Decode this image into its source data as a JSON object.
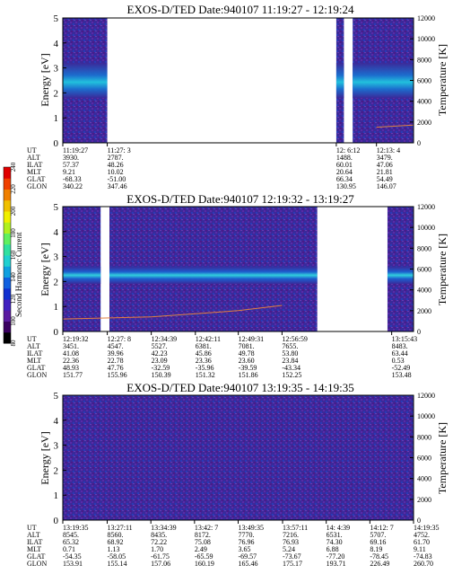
{
  "colorbar": {
    "title": "Second Harmonic Current",
    "ticks": [
      "80",
      "100",
      "120",
      "140",
      "160",
      "180",
      "200",
      "220",
      "240"
    ],
    "colors": [
      "#000000",
      "#3a0060",
      "#5a1aa0",
      "#4020c0",
      "#1030d0",
      "#1060e0",
      "#10a0e0",
      "#20d0d0",
      "#30e0a0",
      "#60f060",
      "#b0f020",
      "#f0f000",
      "#f0c000",
      "#f08000",
      "#f04000",
      "#e00000"
    ]
  },
  "panels": [
    {
      "title": "EXOS-D/TED   Date:940107   11:19:27 - 12:19:24",
      "ylabel_left": "Energy [eV]",
      "ylabel_right": "Temperature [K]",
      "ylim": [
        0,
        5
      ],
      "y2lim": [
        0,
        12000
      ],
      "yticks": [
        "0",
        "1",
        "2",
        "3",
        "4",
        "5"
      ],
      "y2ticks": [
        "0",
        "2000",
        "4000",
        "6000",
        "8000",
        "10000",
        "12000"
      ],
      "row_labels": [
        "UT",
        "ALT",
        "ILAT",
        "MLT",
        "GLAT",
        "GLON"
      ],
      "columns": [
        {
          "values": [
            "11:19:27",
            "3930.",
            "57.37",
            "9.21",
            "-68.33",
            "340.22"
          ]
        },
        {
          "values": [
            "11:27: 3",
            "2787.",
            "48.26",
            "10.02",
            "-51.00",
            "347.46"
          ]
        },
        {
          "values": [
            "12: 6:12",
            "1488.",
            "60.01",
            "20.64",
            "66.34",
            "130.95"
          ]
        },
        {
          "values": [
            "12:13: 4",
            "3479.",
            "47.06",
            "21.81",
            "54.49",
            "146.07"
          ]
        }
      ]
    },
    {
      "title": "EXOS-D/TED   Date:940107   12:19:32 - 13:19:27",
      "ylabel_left": "Energy [eV]",
      "ylabel_right": "Temperature [K]",
      "ylim": [
        0,
        5
      ],
      "y2lim": [
        0,
        12000
      ],
      "yticks": [
        "0",
        "1",
        "2",
        "3",
        "4",
        "5"
      ],
      "y2ticks": [
        "0",
        "2000",
        "4000",
        "6000",
        "8000",
        "10000",
        "12000"
      ],
      "row_labels": [
        "UT",
        "ALT",
        "ILAT",
        "MLT",
        "GLAT",
        "GLON"
      ],
      "columns": [
        {
          "values": [
            "12:19:32",
            "3451.",
            "41.08",
            "22.36",
            "48.93",
            "151.77"
          ]
        },
        {
          "values": [
            "12:27: 8",
            "4547.",
            "39.96",
            "22.78",
            "47.76",
            "155.96"
          ]
        },
        {
          "values": [
            "12:34:39",
            "5527.",
            "42.23",
            "23.09",
            "-32.59",
            "150.39"
          ]
        },
        {
          "values": [
            "12:42:11",
            "6381.",
            "45.86",
            "23.36",
            "-35.96",
            "151.32"
          ]
        },
        {
          "values": [
            "12:49:31",
            "7081.",
            "49.78",
            "23.60",
            "-39.59",
            "151.86"
          ]
        },
        {
          "values": [
            "12:56:59",
            "7655.",
            "53.80",
            "23.84",
            "-43.34",
            "152.25"
          ]
        },
        {
          "values": [
            "13:15:43",
            "8483.",
            "63.44",
            "0.53",
            "-52.49",
            "153.48"
          ]
        }
      ]
    },
    {
      "title": "EXOS-D/TED   Date:940107   13:19:35 - 14:19:35",
      "ylabel_left": "Energy [eV]",
      "ylabel_right": "Temperature [K]",
      "ylim": [
        0,
        5
      ],
      "y2lim": [
        0,
        12000
      ],
      "yticks": [
        "0",
        "1",
        "2",
        "3",
        "4",
        "5"
      ],
      "y2ticks": [
        "0",
        "2000",
        "4000",
        "6000",
        "8000",
        "10000",
        "12000"
      ],
      "row_labels": [
        "UT",
        "ALT",
        "ILAT",
        "MLT",
        "GLAT",
        "GLON"
      ],
      "columns": [
        {
          "values": [
            "13:19:35",
            "8545.",
            "65.32",
            "0.71",
            "-54.35",
            "153.91"
          ]
        },
        {
          "values": [
            "13:27:11",
            "8560.",
            "68.92",
            "1.13",
            "-58.05",
            "155.14"
          ]
        },
        {
          "values": [
            "13:34:39",
            "8435.",
            "72.22",
            "1.70",
            "-61.75",
            "157.06"
          ]
        },
        {
          "values": [
            "13:42: 7",
            "8172.",
            "75.08",
            "2.49",
            "-65.59",
            "160.19"
          ]
        },
        {
          "values": [
            "13:49:35",
            "7770.",
            "76.96",
            "3.65",
            "-69.57",
            "165.46"
          ]
        },
        {
          "values": [
            "13:57:11",
            "7216.",
            "76.93",
            "5.24",
            "-73.67",
            "175.17"
          ]
        },
        {
          "values": [
            "14: 4:39",
            "6531.",
            "74.30",
            "6.88",
            "-77.20",
            "193.71"
          ]
        },
        {
          "values": [
            "14:12: 7",
            "5707.",
            "69.16",
            "8.19",
            "-78.45",
            "226.49"
          ]
        },
        {
          "values": [
            "14:19:35",
            "4752.",
            "61.70",
            "9.11",
            "-74.83",
            "260.70"
          ]
        }
      ]
    }
  ],
  "chart_data": [
    {
      "type": "heatmap",
      "title": "EXOS-D/TED   Date:940107   11:19:27 - 12:19:24",
      "xlabel": "UT",
      "ylabel": "Energy [eV]",
      "y2label": "Temperature [K]",
      "ylim": [
        0,
        5
      ],
      "y2lim": [
        0,
        12000
      ],
      "data_segments_ut": [
        [
          "11:19:27",
          "11:27: 3"
        ],
        [
          "12: 6:12",
          "12: 7:30"
        ],
        [
          "12: 9:00",
          "12:19:24"
        ]
      ],
      "dominant_band_energy_ev": [
        1.8,
        3.2
      ],
      "temperature_trace_k": {
        "x": [
          "12:13: 4",
          "12:16:00",
          "12:19:24"
        ],
        "y": [
          1500,
          1600,
          1700
        ]
      }
    },
    {
      "type": "heatmap",
      "title": "EXOS-D/TED   Date:940107   12:19:32 - 13:19:27",
      "xlabel": "UT",
      "ylabel": "Energy [eV]",
      "y2label": "Temperature [K]",
      "ylim": [
        0,
        5
      ],
      "y2lim": [
        0,
        12000
      ],
      "data_segments_ut": [
        [
          "12:19:32",
          "12:26:00"
        ],
        [
          "12:27:30",
          "13: 3:00"
        ],
        [
          "13:15:00",
          "13:19:27"
        ]
      ],
      "dominant_band_energy_ev": [
        1.9,
        2.6
      ],
      "temperature_trace_k": {
        "x": [
          "12:19:32",
          "12:34:39",
          "12:49:31",
          "12:56:59"
        ],
        "y": [
          1200,
          1400,
          2000,
          2500
        ]
      }
    },
    {
      "type": "heatmap",
      "title": "EXOS-D/TED   Date:940107   13:19:35 - 14:19:35",
      "xlabel": "UT",
      "ylabel": "Energy [eV]",
      "y2label": "Temperature [K]",
      "ylim": [
        0,
        5
      ],
      "y2lim": [
        0,
        12000
      ],
      "data_segments_ut": [
        [
          "13:19:35",
          "14:19:35"
        ]
      ],
      "dominant_band_energy_ev": [],
      "temperature_trace_k": {
        "x": [],
        "y": []
      }
    }
  ]
}
